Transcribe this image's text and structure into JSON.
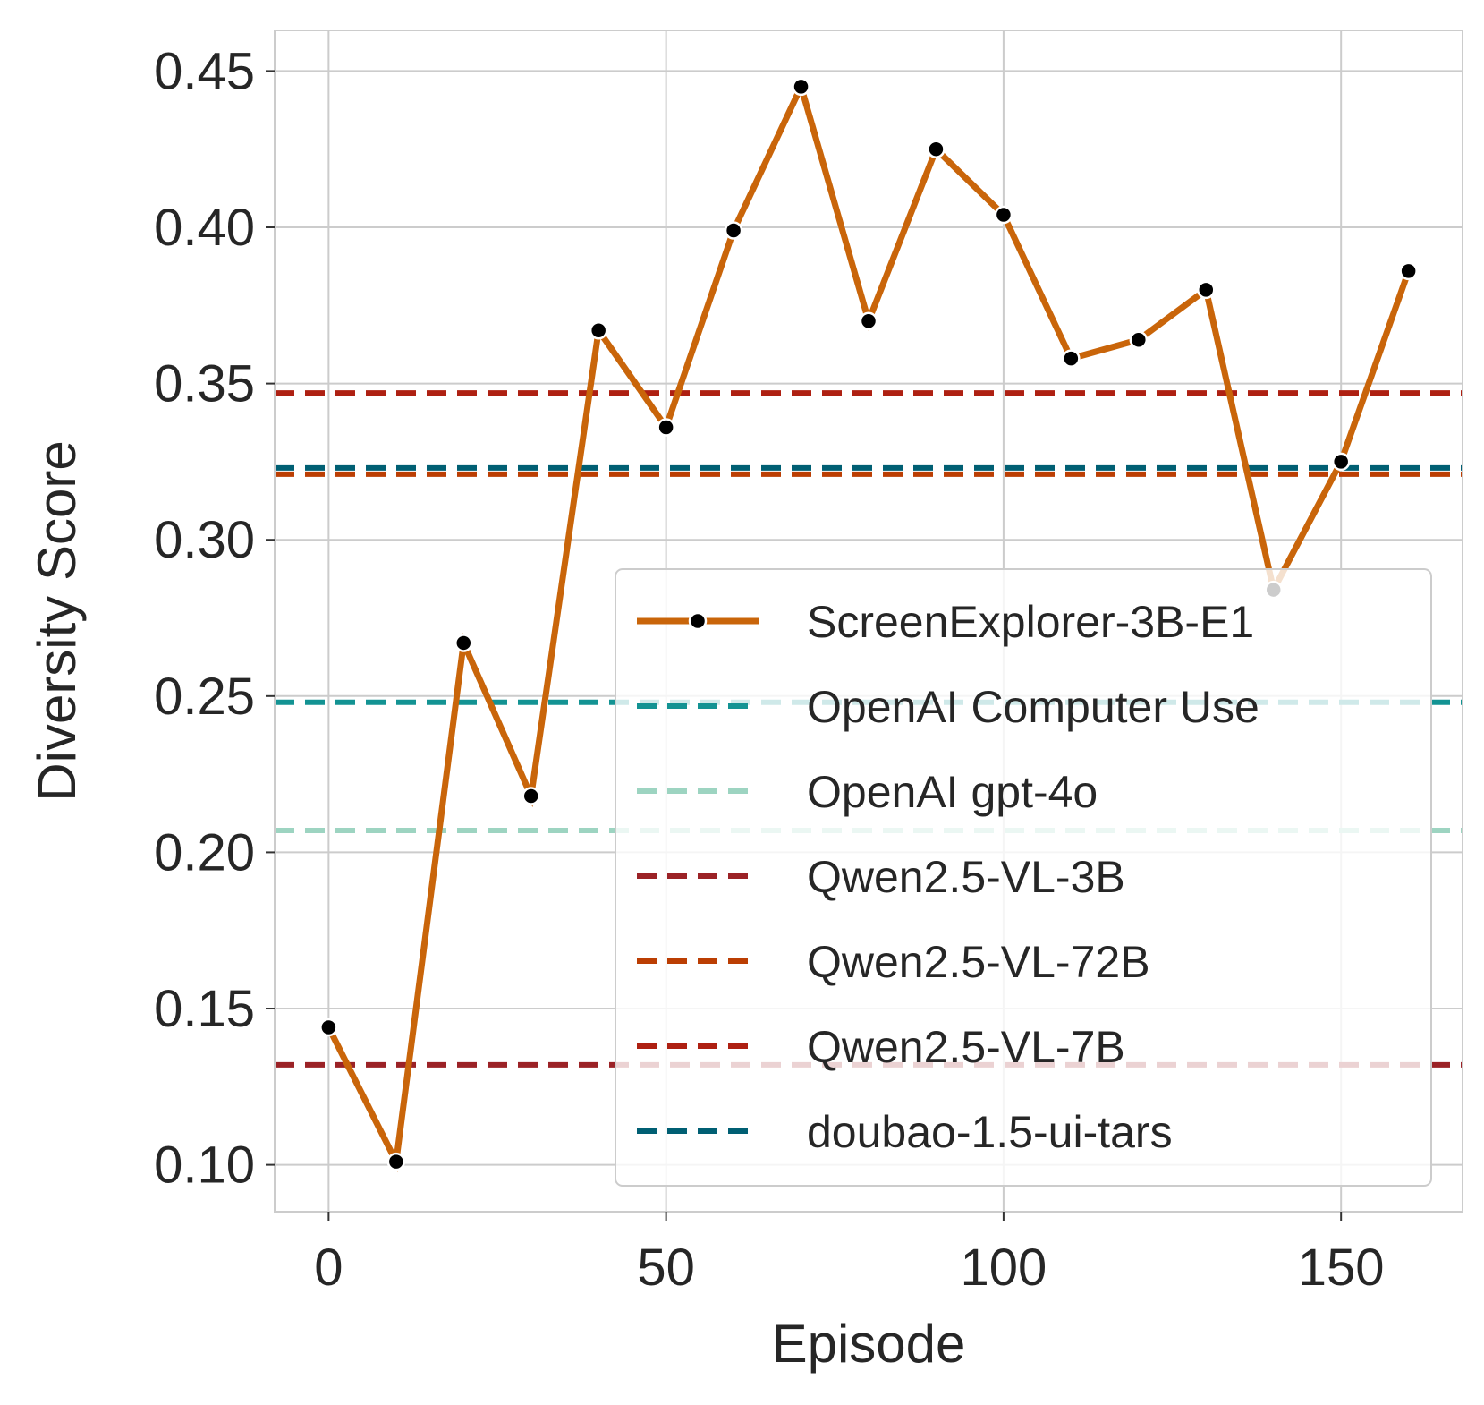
{
  "chart_data": {
    "type": "line",
    "title": "",
    "xlabel": "Episode",
    "ylabel": "Diversity Score",
    "xlim": [
      -8,
      168
    ],
    "ylim": [
      0.085,
      0.463
    ],
    "xticks": [
      0,
      50,
      100,
      150
    ],
    "xtick_labels": [
      "0",
      "50",
      "100",
      "150"
    ],
    "yticks": [
      0.1,
      0.15,
      0.2,
      0.25,
      0.3,
      0.35,
      0.4,
      0.45
    ],
    "ytick_labels": [
      "0.10",
      "0.15",
      "0.20",
      "0.25",
      "0.30",
      "0.35",
      "0.40",
      "0.45"
    ],
    "grid": true,
    "legend_position": "lower-right",
    "series": [
      {
        "name": "ScreenExplorer-3B-E1",
        "style": "solid-markers",
        "color": "#c9650a",
        "x": [
          0,
          10,
          20,
          30,
          40,
          50,
          60,
          70,
          80,
          90,
          100,
          110,
          120,
          130,
          140,
          150,
          160
        ],
        "y": [
          0.144,
          0.101,
          0.267,
          0.218,
          0.367,
          0.336,
          0.399,
          0.445,
          0.37,
          0.425,
          0.404,
          0.358,
          0.364,
          0.38,
          0.284,
          0.325,
          0.386
        ]
      }
    ],
    "reference_lines": [
      {
        "name": "OpenAI Computer Use",
        "value": 0.248,
        "color": "#139393"
      },
      {
        "name": "OpenAI gpt-4o",
        "value": 0.207,
        "color": "#9dd4c1"
      },
      {
        "name": "Qwen2.5-VL-3B",
        "value": 0.132,
        "color": "#9b2226"
      },
      {
        "name": "Qwen2.5-VL-72B",
        "value": 0.321,
        "color": "#bb3e03"
      },
      {
        "name": "Qwen2.5-VL-7B",
        "value": 0.347,
        "color": "#ae2012"
      },
      {
        "name": "doubao-1.5-ui-tars",
        "value": 0.323,
        "color": "#005f73"
      }
    ]
  }
}
